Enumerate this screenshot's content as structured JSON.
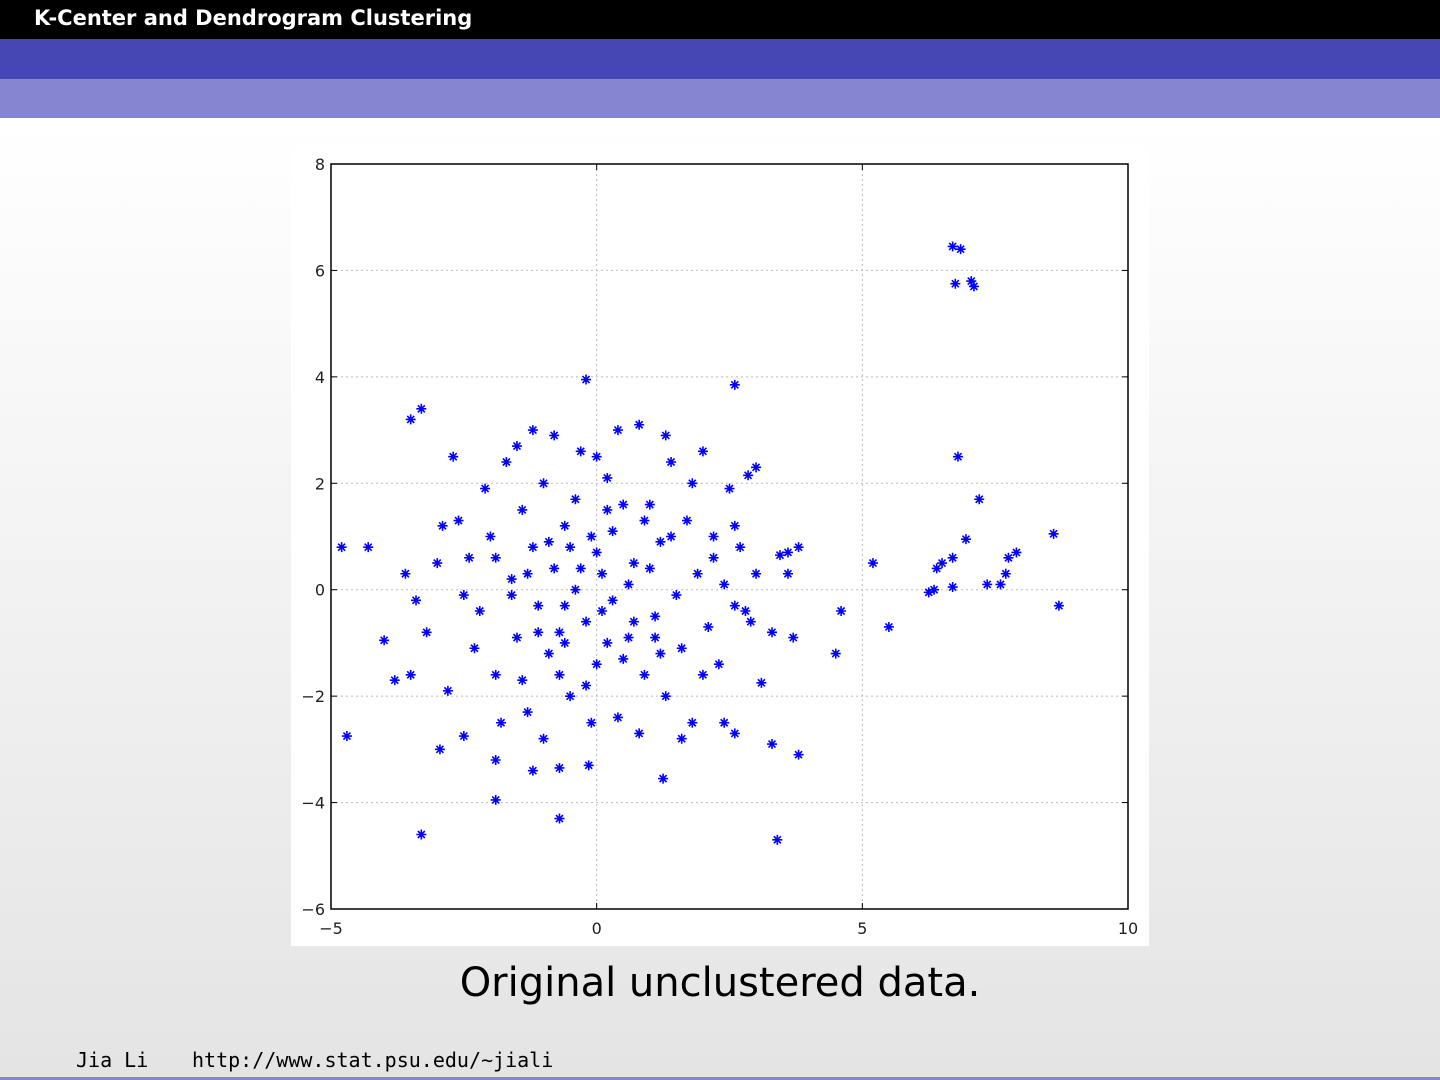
{
  "header": {
    "title": "K-Center and Dendrogram Clustering"
  },
  "chart_data": {
    "type": "scatter",
    "color": "#0000ff",
    "grid": true,
    "xlim": [
      -5,
      10
    ],
    "ylim": [
      -6,
      8
    ],
    "xticks": [
      {
        "value": -5,
        "label": "−5"
      },
      0,
      5,
      10
    ],
    "yticks": [
      {
        "value": -6,
        "label": "−6"
      },
      {
        "value": -4,
        "label": "−4"
      },
      {
        "value": -2,
        "label": "−2"
      },
      0,
      2,
      4,
      6,
      8
    ],
    "x": [
      -4.8,
      -4.3,
      -4.7,
      -3.3,
      -3.5,
      -3.3,
      -0.7,
      -1.9,
      3.4,
      3.8,
      3.3,
      2.6,
      -0.2,
      6.7,
      6.85,
      6.75,
      7.05,
      7.1,
      6.8,
      7.2,
      6.95,
      8.6,
      8.7,
      7.9,
      7.75,
      7.7,
      7.6,
      7.35,
      6.7,
      6.35,
      6.25,
      6.5,
      6.7,
      6.4,
      5.2,
      5.5,
      4.6,
      4.5,
      3.7,
      3.3,
      3.6,
      3.8,
      3.6,
      3.45,
      3.1,
      3.0,
      2.85,
      3.0,
      -4.0,
      -3.8,
      -3.5,
      -2.95,
      -2.5,
      -1.9,
      -1.2,
      -0.7,
      -0.15,
      1.25,
      2.6,
      -2.6,
      -2.4,
      -2.2,
      -2.0,
      -1.9,
      -1.7,
      -1.6,
      -1.5,
      -1.4,
      -1.3,
      -1.2,
      -1.1,
      -1.0,
      -0.9,
      -0.8,
      -0.7,
      -0.6,
      -0.5,
      -0.4,
      -0.3,
      -0.2,
      -0.1,
      0.0,
      0.1,
      0.2,
      0.3,
      0.4,
      0.5,
      0.6,
      0.7,
      0.8,
      0.9,
      1.0,
      1.1,
      1.2,
      1.3,
      1.4,
      1.5,
      1.6,
      1.7,
      1.8,
      1.9,
      2.0,
      2.1,
      2.2,
      2.3,
      2.4,
      2.5,
      2.6,
      2.7,
      2.8,
      -3.0,
      -3.2,
      -2.8,
      -2.7,
      -2.3,
      -2.1,
      -1.8,
      -1.6,
      -1.4,
      -1.2,
      -1.0,
      -0.8,
      -0.6,
      -0.4,
      -0.2,
      0.0,
      0.2,
      0.4,
      0.6,
      0.8,
      1.0,
      1.2,
      1.4,
      1.6,
      1.8,
      2.0,
      2.2,
      2.4,
      2.6,
      -0.9,
      -0.6,
      -0.3,
      0.1,
      0.3,
      0.5,
      0.7,
      0.9,
      -1.1,
      -1.3,
      -0.7,
      0.2,
      -0.5,
      1.1,
      -1.9,
      -2.5,
      -3.4,
      -3.6,
      -2.9,
      2.9,
      1.3,
      -1.5,
      0.0,
      -0.1
    ],
    "values": [
      0.8,
      0.8,
      -2.75,
      -4.6,
      3.2,
      3.4,
      -4.3,
      -3.95,
      -4.7,
      -3.1,
      -2.9,
      3.85,
      3.95,
      6.45,
      6.4,
      5.75,
      5.8,
      5.7,
      2.5,
      1.7,
      0.95,
      1.05,
      -0.3,
      0.7,
      0.6,
      0.3,
      0.1,
      0.1,
      0.05,
      0,
      -0.05,
      0.5,
      0.6,
      0.4,
      0.5,
      -0.7,
      -0.4,
      -1.2,
      -0.9,
      -0.8,
      0.3,
      0.8,
      0.7,
      0.65,
      -1.75,
      2.3,
      2.15,
      0.3,
      -0.95,
      -1.7,
      -1.6,
      -3.0,
      -2.75,
      -3.2,
      -3.4,
      -3.35,
      -3.3,
      -3.55,
      -2.7,
      1.3,
      0.6,
      -0.4,
      1.0,
      -1.6,
      2.4,
      0.2,
      -0.9,
      1.5,
      -2.3,
      0.8,
      -0.3,
      2.0,
      -1.2,
      0.4,
      -0.8,
      1.2,
      -2.0,
      0.0,
      2.6,
      -0.6,
      1.0,
      -1.4,
      0.3,
      2.1,
      -0.2,
      -2.4,
      1.6,
      -0.9,
      0.5,
      3.1,
      -1.6,
      1.6,
      -0.5,
      0.9,
      -2.0,
      2.4,
      -0.1,
      -1.1,
      1.3,
      -2.5,
      0.3,
      2.6,
      -0.7,
      1.0,
      -1.4,
      0.1,
      1.9,
      -0.3,
      0.8,
      -0.4,
      0.5,
      -0.8,
      -1.9,
      2.5,
      -1.1,
      1.9,
      -2.5,
      -0.1,
      -1.7,
      3.0,
      -2.8,
      2.9,
      -0.3,
      1.7,
      -1.8,
      0.7,
      -1.0,
      3.0,
      0.1,
      -2.7,
      0.4,
      -1.2,
      1.0,
      -2.8,
      2.0,
      -1.6,
      0.6,
      -2.5,
      1.2,
      0.9,
      -1.0,
      0.4,
      -0.4,
      1.1,
      -1.3,
      -0.6,
      1.3,
      -0.8,
      0.3,
      -1.6,
      1.5,
      0.8,
      -0.9,
      0.6,
      -0.1,
      -0.2,
      0.3,
      1.2,
      -0.6,
      2.9,
      2.7,
      2.5,
      -2.5
    ]
  },
  "caption": "Original unclustered data.",
  "footer": {
    "author": "Jia Li",
    "url": "http://www.stat.psu.edu/∼jiali"
  }
}
